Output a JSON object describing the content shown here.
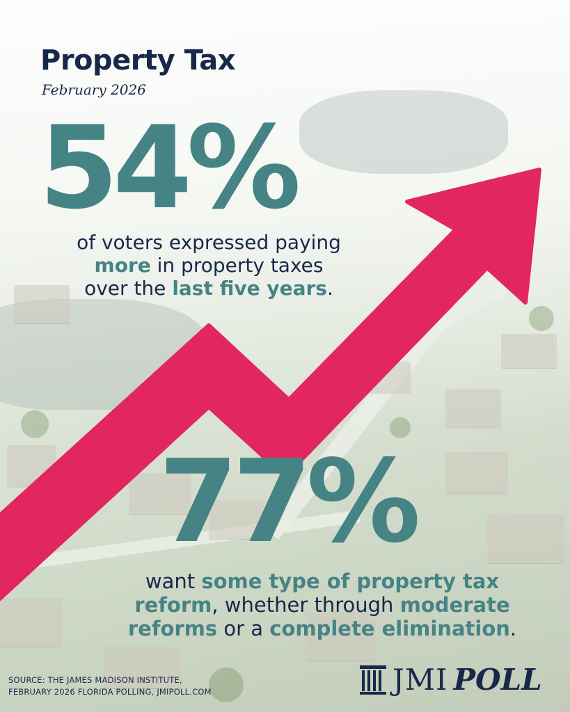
{
  "header": {
    "title": "Property Tax",
    "date": "February 2026"
  },
  "stat1": {
    "value": "54%",
    "line1": "of voters expressed paying",
    "line2_highlight": "more",
    "line2_rest": " in property taxes",
    "line3_start": "over the ",
    "line3_highlight": "last five years",
    "line3_end": "."
  },
  "stat2": {
    "value": "77%",
    "line1_start": "want ",
    "line1_highlight": "some type of property tax",
    "line2_highlight": "reform",
    "line2_mid": ", whether through ",
    "line2_highlight2": "moderate",
    "line3_highlight": "reforms",
    "line3_mid": " or a ",
    "line3_highlight2": "complete elimination",
    "line3_end": "."
  },
  "footer": {
    "source_line1": "SOURCE: THE JAMES MADISON INSTITUTE,",
    "source_line2": "FEBRUARY 2026 FLORIDA POLLING, JMIPOLL.COM",
    "logo_jmi": "JMI",
    "logo_poll": "POLL",
    "logo_icon": "columns-icon"
  },
  "colors": {
    "navy": "#18284a",
    "teal": "#468384",
    "arrow": "#e2265f"
  }
}
